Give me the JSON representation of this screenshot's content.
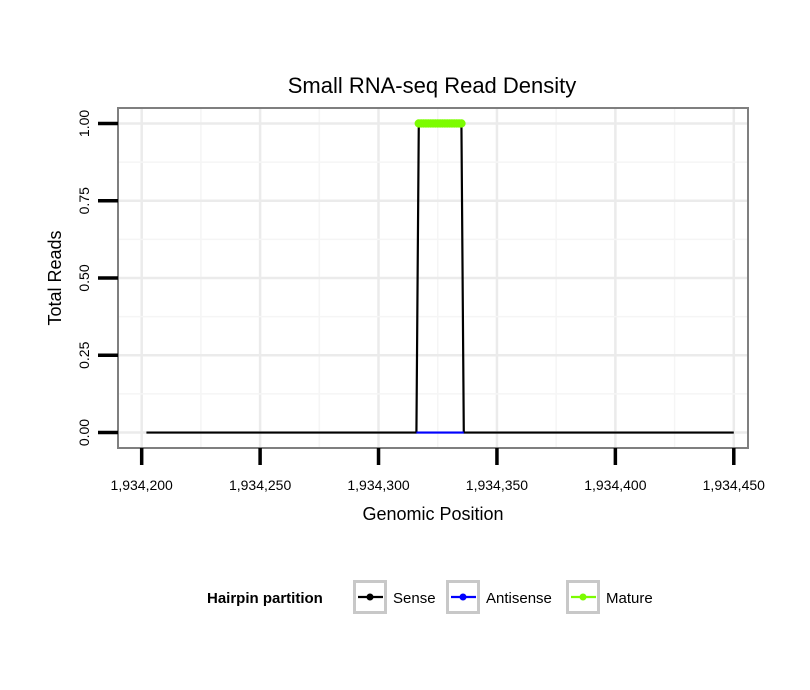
{
  "chart_data": {
    "type": "line",
    "title": "Small RNA-seq Read Density",
    "xlabel": "Genomic Position",
    "ylabel": "Total Reads",
    "xlim": [
      1934190,
      1934456
    ],
    "ylim": [
      -0.05,
      1.05
    ],
    "x_ticks": [
      1934200,
      1934250,
      1934300,
      1934350,
      1934400,
      1934450
    ],
    "x_tick_labels": [
      "1,934,200",
      "1,934,250",
      "1,934,300",
      "1,934,350",
      "1,934,400",
      "1,934,450"
    ],
    "y_ticks": [
      0,
      0.25,
      0.5,
      0.75,
      1.0
    ],
    "y_tick_labels": [
      "0.00",
      "0.25",
      "0.50",
      "0.75",
      "1.00"
    ],
    "grid": true,
    "legend": {
      "title": "Hairpin partition",
      "position": "bottom",
      "entries": [
        "Sense",
        "Antisense",
        "Mature"
      ]
    },
    "series": [
      {
        "name": "Sense",
        "color": "#000000",
        "x": [
          1934202,
          1934316,
          1934317,
          1934335,
          1934336,
          1934450
        ],
        "y": [
          0,
          0,
          1,
          1,
          0,
          0
        ],
        "points": false
      },
      {
        "name": "Antisense",
        "color": "#0000ff",
        "x": [
          1934316,
          1934336
        ],
        "y": [
          0,
          0
        ],
        "points": false
      },
      {
        "name": "Mature",
        "color": "#7cfc00",
        "x": [
          1934317,
          1934318,
          1934319,
          1934320,
          1934321,
          1934322,
          1934323,
          1934324,
          1934325,
          1934326,
          1934327,
          1934328,
          1934329,
          1934330,
          1934331,
          1934332,
          1934333,
          1934334,
          1934335
        ],
        "y": [
          1,
          1,
          1,
          1,
          1,
          1,
          1,
          1,
          1,
          1,
          1,
          1,
          1,
          1,
          1,
          1,
          1,
          1,
          1
        ],
        "points": true
      }
    ]
  }
}
